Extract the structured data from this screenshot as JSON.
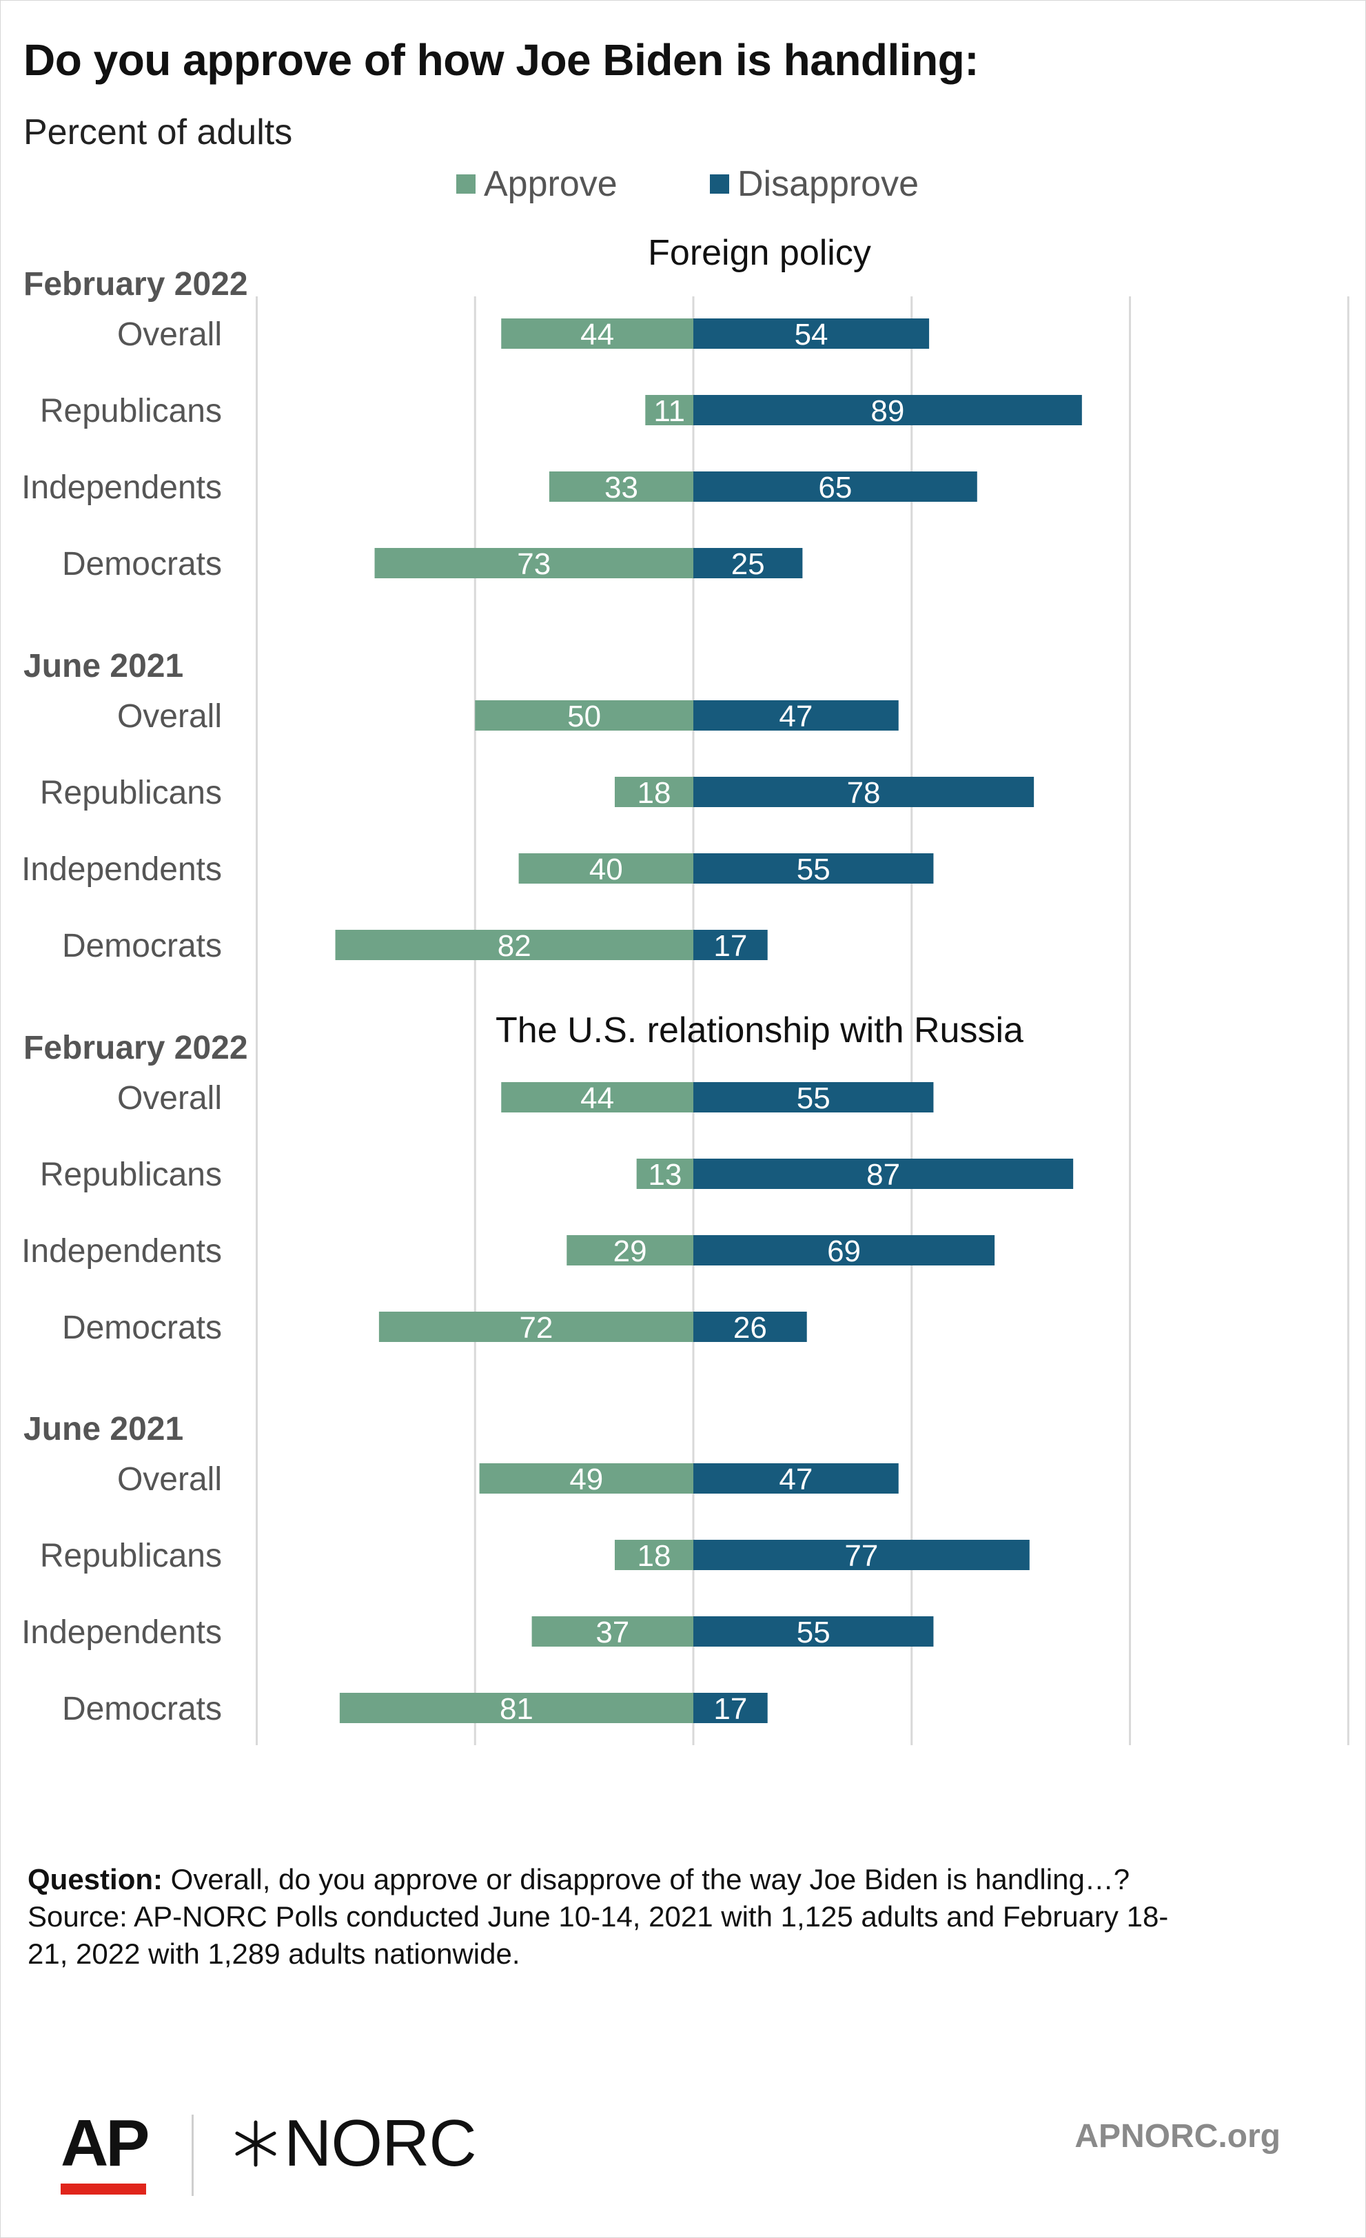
{
  "title": "Do you approve of how Joe Biden is handling:",
  "subtitle": "Percent of adults",
  "legend": [
    {
      "label": "Approve",
      "color": "#6fa387"
    },
    {
      "label": "Disapprove",
      "color": "#175a7c"
    }
  ],
  "chart_data": {
    "type": "bar",
    "orientation": "horizontal-diverging",
    "xlim": [
      -100,
      150
    ],
    "grid": true,
    "colors": {
      "approve": "#6fa387",
      "disapprove": "#175a7c"
    },
    "series": [
      {
        "name": "Approve"
      },
      {
        "name": "Disapprove"
      }
    ],
    "panels": [
      {
        "title": "Foreign policy",
        "groups": [
          {
            "period": "February 2022",
            "rows": [
              {
                "label": "Overall",
                "approve": 44,
                "disapprove": 54
              },
              {
                "label": "Republicans",
                "approve": 11,
                "disapprove": 89
              },
              {
                "label": "Independents",
                "approve": 33,
                "disapprove": 65
              },
              {
                "label": "Democrats",
                "approve": 73,
                "disapprove": 25
              }
            ]
          },
          {
            "period": "June 2021",
            "rows": [
              {
                "label": "Overall",
                "approve": 50,
                "disapprove": 47
              },
              {
                "label": "Republicans",
                "approve": 18,
                "disapprove": 78
              },
              {
                "label": "Independents",
                "approve": 40,
                "disapprove": 55
              },
              {
                "label": "Democrats",
                "approve": 82,
                "disapprove": 17
              }
            ]
          }
        ]
      },
      {
        "title": "The U.S. relationship with Russia",
        "groups": [
          {
            "period": "February 2022",
            "rows": [
              {
                "label": "Overall",
                "approve": 44,
                "disapprove": 55
              },
              {
                "label": "Republicans",
                "approve": 13,
                "disapprove": 87
              },
              {
                "label": "Independents",
                "approve": 29,
                "disapprove": 69
              },
              {
                "label": "Democrats",
                "approve": 72,
                "disapprove": 26
              }
            ]
          },
          {
            "period": "June 2021",
            "rows": [
              {
                "label": "Overall",
                "approve": 49,
                "disapprove": 47
              },
              {
                "label": "Republicans",
                "approve": 18,
                "disapprove": 77
              },
              {
                "label": "Independents",
                "approve": 37,
                "disapprove": 55
              },
              {
                "label": "Democrats",
                "approve": 81,
                "disapprove": 17
              }
            ]
          }
        ]
      }
    ]
  },
  "footnote": {
    "question_label": "Question:",
    "question_text": " Overall, do you approve or disapprove of the way Joe Biden is handling…?",
    "source_line1": "Source: AP-NORC Polls conducted June 10-14, 2021 with 1,125 adults and February 18-",
    "source_line2": "21, 2022 with 1,289 adults nationwide."
  },
  "branding": {
    "ap_logo": "AP",
    "norc_logo": "NORC",
    "norc_icon": "star-icon",
    "website": "APNORC.org"
  }
}
